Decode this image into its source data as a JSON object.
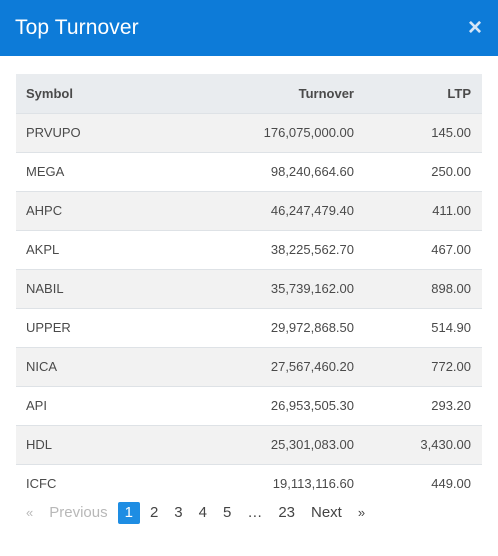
{
  "modal": {
    "title": "Top Turnover",
    "close_label": "×"
  },
  "table": {
    "headers": {
      "symbol": "Symbol",
      "turnover": "Turnover",
      "ltp": "LTP"
    },
    "rows": [
      {
        "symbol": "PRVUPO",
        "turnover": "176,075,000.00",
        "ltp": "145.00"
      },
      {
        "symbol": "MEGA",
        "turnover": "98,240,664.60",
        "ltp": "250.00"
      },
      {
        "symbol": "AHPC",
        "turnover": "46,247,479.40",
        "ltp": "411.00"
      },
      {
        "symbol": "AKPL",
        "turnover": "38,225,562.70",
        "ltp": "467.00"
      },
      {
        "symbol": "NABIL",
        "turnover": "35,739,162.00",
        "ltp": "898.00"
      },
      {
        "symbol": "UPPER",
        "turnover": "29,972,868.50",
        "ltp": "514.90"
      },
      {
        "symbol": "NICA",
        "turnover": "27,567,460.20",
        "ltp": "772.00"
      },
      {
        "symbol": "API",
        "turnover": "26,953,505.30",
        "ltp": "293.20"
      },
      {
        "symbol": "HDL",
        "turnover": "25,301,083.00",
        "ltp": "3,430.00"
      },
      {
        "symbol": "ICFC",
        "turnover": "19,113,116.60",
        "ltp": "449.00"
      }
    ]
  },
  "pagination": {
    "prev_chevron": "«",
    "prev_label": "Previous",
    "pages": [
      "1",
      "2",
      "3",
      "4",
      "5",
      "…",
      "23"
    ],
    "current_page": "1",
    "next_label": "Next",
    "next_chevron": "»"
  },
  "colors": {
    "header_bg": "#0d7bd8",
    "active_page_bg": "#1e8de3"
  }
}
